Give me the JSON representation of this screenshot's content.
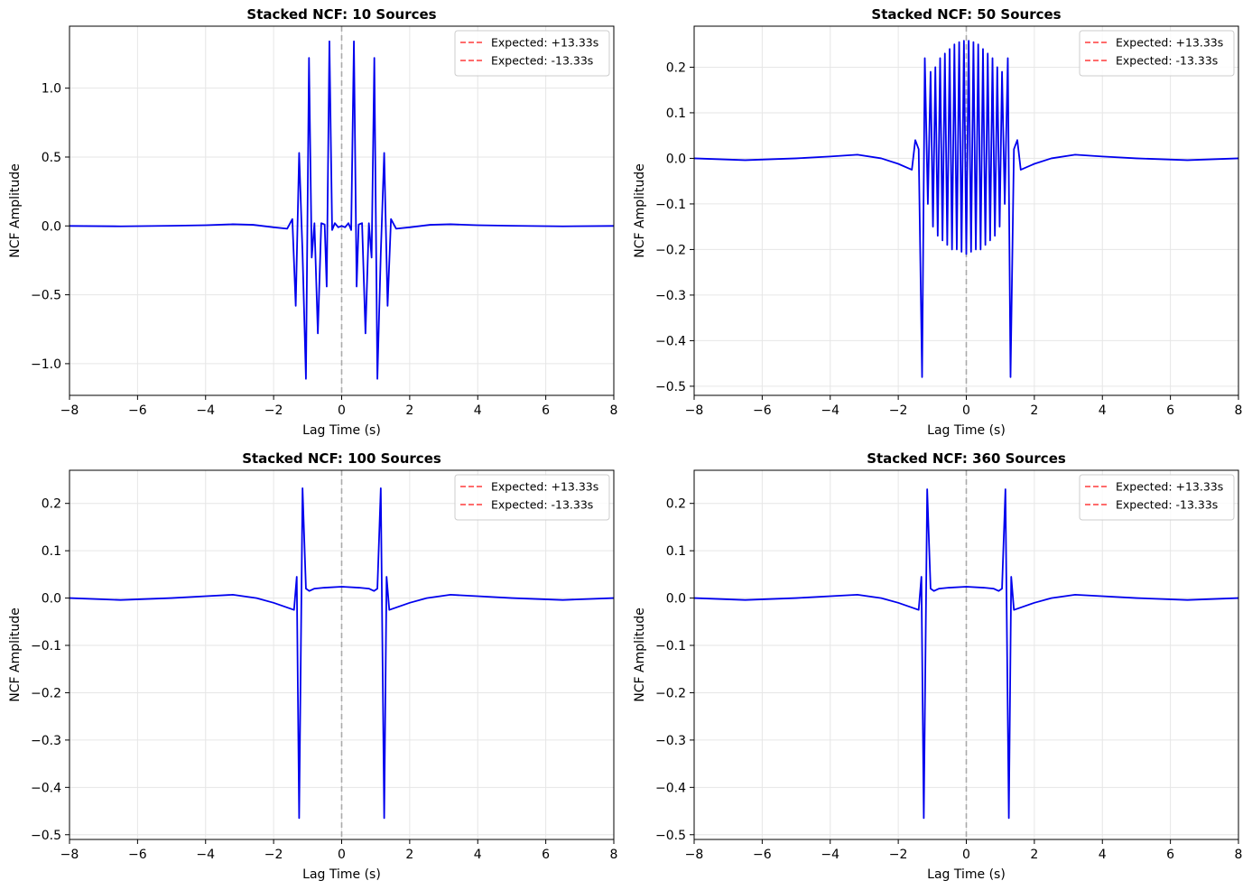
{
  "figure": {
    "background": "#ffffff",
    "line_color": "#0000ee",
    "expected_color": "#ff3b3b",
    "zero_line_color": "#aaaaaa",
    "grid_color": "#e6e6e6"
  },
  "chart_data": [
    {
      "type": "line",
      "title": "Stacked NCF: 10 Sources",
      "xlabel": "Lag Time (s)",
      "ylabel": "NCF Amplitude",
      "xlim": [
        -8,
        8
      ],
      "ylim": [
        -1.23,
        1.45
      ],
      "xticks": [
        -8,
        -6,
        -4,
        -2,
        0,
        2,
        4,
        6,
        8
      ],
      "yticks": [
        -1.0,
        -0.5,
        0.0,
        0.5,
        1.0
      ],
      "ytick_labels": [
        "−1.0",
        "−0.5",
        "0.0",
        "0.5",
        "1.0"
      ],
      "xtick_labels": [
        "−8",
        "−6",
        "−4",
        "−2",
        "0",
        "2",
        "4",
        "6",
        "8"
      ],
      "grid": true,
      "zero_line_x": 0,
      "legend": {
        "position": "top-right",
        "entries": [
          "Expected: +13.33s",
          "Expected: -13.33s"
        ]
      },
      "series": [
        {
          "name": "Stacked NCF",
          "points": [
            [
              -8,
              0
            ],
            [
              -6.5,
              -0.003
            ],
            [
              -5,
              0.001
            ],
            [
              -4,
              0.005
            ],
            [
              -3.2,
              0.012
            ],
            [
              -2.6,
              0.008
            ],
            [
              -2,
              -0.01
            ],
            [
              -1.6,
              -0.02
            ],
            [
              -1.45,
              0.05
            ],
            [
              -1.35,
              -0.58
            ],
            [
              -1.25,
              0.53
            ],
            [
              -1.15,
              -0.2
            ],
            [
              -1.05,
              -1.11
            ],
            [
              -0.96,
              1.22
            ],
            [
              -0.88,
              -0.23
            ],
            [
              -0.8,
              0.02
            ],
            [
              -0.7,
              -0.78
            ],
            [
              -0.6,
              0.02
            ],
            [
              -0.5,
              0.01
            ],
            [
              -0.44,
              -0.44
            ],
            [
              -0.36,
              1.34
            ],
            [
              -0.28,
              -0.03
            ],
            [
              -0.2,
              0.02
            ],
            [
              -0.1,
              -0.01
            ],
            [
              0,
              0
            ],
            [
              0.1,
              -0.01
            ],
            [
              0.2,
              0.02
            ],
            [
              0.28,
              -0.03
            ],
            [
              0.36,
              1.34
            ],
            [
              0.44,
              -0.44
            ],
            [
              0.5,
              0.01
            ],
            [
              0.6,
              0.02
            ],
            [
              0.7,
              -0.78
            ],
            [
              0.8,
              0.02
            ],
            [
              0.88,
              -0.23
            ],
            [
              0.96,
              1.22
            ],
            [
              1.05,
              -1.11
            ],
            [
              1.15,
              -0.2
            ],
            [
              1.25,
              0.53
            ],
            [
              1.35,
              -0.58
            ],
            [
              1.45,
              0.05
            ],
            [
              1.6,
              -0.02
            ],
            [
              2,
              -0.01
            ],
            [
              2.6,
              0.008
            ],
            [
              3.2,
              0.012
            ],
            [
              4,
              0.005
            ],
            [
              5,
              0.001
            ],
            [
              6.5,
              -0.003
            ],
            [
              8,
              0
            ]
          ]
        }
      ]
    },
    {
      "type": "line",
      "title": "Stacked NCF: 50 Sources",
      "xlabel": "Lag Time (s)",
      "ylabel": "NCF Amplitude",
      "xlim": [
        -8,
        8
      ],
      "ylim": [
        -0.52,
        0.29
      ],
      "xticks": [
        -8,
        -6,
        -4,
        -2,
        0,
        2,
        4,
        6,
        8
      ],
      "yticks": [
        -0.5,
        -0.4,
        -0.3,
        -0.2,
        -0.1,
        0.0,
        0.1,
        0.2
      ],
      "ytick_labels": [
        "−0.5",
        "−0.4",
        "−0.3",
        "−0.2",
        "−0.1",
        "0.0",
        "0.1",
        "0.2"
      ],
      "xtick_labels": [
        "−8",
        "−6",
        "−4",
        "−2",
        "0",
        "2",
        "4",
        "6",
        "8"
      ],
      "grid": true,
      "zero_line_x": 0,
      "legend": {
        "position": "top-right",
        "entries": [
          "Expected: +13.33s",
          "Expected: -13.33s"
        ]
      },
      "series": [
        {
          "name": "Stacked NCF",
          "points": [
            [
              -8,
              0
            ],
            [
              -6.5,
              -0.004
            ],
            [
              -5,
              0.0
            ],
            [
              -4,
              0.004
            ],
            [
              -3.2,
              0.008
            ],
            [
              -2.5,
              0.0
            ],
            [
              -2,
              -0.012
            ],
            [
              -1.6,
              -0.025
            ],
            [
              -1.5,
              0.04
            ],
            [
              -1.4,
              0.02
            ],
            [
              -1.3,
              -0.48
            ],
            [
              -1.22,
              0.22
            ],
            [
              -1.13,
              -0.1
            ],
            [
              -1.05,
              0.19
            ],
            [
              -0.98,
              -0.15
            ],
            [
              -0.91,
              0.2
            ],
            [
              -0.84,
              -0.17
            ],
            [
              -0.77,
              0.22
            ],
            [
              -0.7,
              -0.18
            ],
            [
              -0.63,
              0.23
            ],
            [
              -0.56,
              -0.19
            ],
            [
              -0.49,
              0.24
            ],
            [
              -0.42,
              -0.2
            ],
            [
              -0.35,
              0.25
            ],
            [
              -0.28,
              -0.2
            ],
            [
              -0.21,
              0.255
            ],
            [
              -0.14,
              -0.205
            ],
            [
              -0.07,
              0.258
            ],
            [
              0,
              -0.21
            ],
            [
              0.07,
              0.258
            ],
            [
              0.14,
              -0.205
            ],
            [
              0.21,
              0.255
            ],
            [
              0.28,
              -0.2
            ],
            [
              0.35,
              0.25
            ],
            [
              0.42,
              -0.2
            ],
            [
              0.49,
              0.24
            ],
            [
              0.56,
              -0.19
            ],
            [
              0.63,
              0.23
            ],
            [
              0.7,
              -0.18
            ],
            [
              0.77,
              0.22
            ],
            [
              0.84,
              -0.17
            ],
            [
              0.91,
              0.2
            ],
            [
              0.98,
              -0.15
            ],
            [
              1.05,
              0.19
            ],
            [
              1.13,
              -0.1
            ],
            [
              1.22,
              0.22
            ],
            [
              1.3,
              -0.48
            ],
            [
              1.4,
              0.02
            ],
            [
              1.5,
              0.04
            ],
            [
              1.6,
              -0.025
            ],
            [
              2,
              -0.012
            ],
            [
              2.5,
              0.0
            ],
            [
              3.2,
              0.008
            ],
            [
              4,
              0.004
            ],
            [
              5,
              0.0
            ],
            [
              6.5,
              -0.004
            ],
            [
              8,
              0
            ]
          ]
        }
      ]
    },
    {
      "type": "line",
      "title": "Stacked NCF: 100 Sources",
      "xlabel": "Lag Time (s)",
      "ylabel": "NCF Amplitude",
      "xlim": [
        -8,
        8
      ],
      "ylim": [
        -0.51,
        0.27
      ],
      "xticks": [
        -8,
        -6,
        -4,
        -2,
        0,
        2,
        4,
        6,
        8
      ],
      "yticks": [
        -0.5,
        -0.4,
        -0.3,
        -0.2,
        -0.1,
        0.0,
        0.1,
        0.2
      ],
      "ytick_labels": [
        "−0.5",
        "−0.4",
        "−0.3",
        "−0.2",
        "−0.1",
        "0.0",
        "0.1",
        "0.2"
      ],
      "xtick_labels": [
        "−8",
        "−6",
        "−4",
        "−2",
        "0",
        "2",
        "4",
        "6",
        "8"
      ],
      "grid": true,
      "zero_line_x": 0,
      "legend": {
        "position": "top-right",
        "entries": [
          "Expected: +13.33s",
          "Expected: -13.33s"
        ]
      },
      "series": [
        {
          "name": "Stacked NCF",
          "points": [
            [
              -8,
              0
            ],
            [
              -6.5,
              -0.004
            ],
            [
              -5,
              0.0
            ],
            [
              -4,
              0.004
            ],
            [
              -3.2,
              0.007
            ],
            [
              -2.5,
              0.0
            ],
            [
              -2,
              -0.01
            ],
            [
              -1.6,
              -0.02
            ],
            [
              -1.4,
              -0.025
            ],
            [
              -1.32,
              0.045
            ],
            [
              -1.25,
              -0.465
            ],
            [
              -1.15,
              0.232
            ],
            [
              -1.05,
              0.02
            ],
            [
              -0.95,
              0.015
            ],
            [
              -0.8,
              0.02
            ],
            [
              -0.5,
              0.022
            ],
            [
              0,
              0.024
            ],
            [
              0.5,
              0.022
            ],
            [
              0.8,
              0.02
            ],
            [
              0.95,
              0.015
            ],
            [
              1.05,
              0.02
            ],
            [
              1.15,
              0.232
            ],
            [
              1.25,
              -0.465
            ],
            [
              1.32,
              0.045
            ],
            [
              1.4,
              -0.025
            ],
            [
              1.6,
              -0.02
            ],
            [
              2,
              -0.01
            ],
            [
              2.5,
              0.0
            ],
            [
              3.2,
              0.007
            ],
            [
              4,
              0.004
            ],
            [
              5,
              0.0
            ],
            [
              6.5,
              -0.004
            ],
            [
              8,
              0
            ]
          ]
        }
      ]
    },
    {
      "type": "line",
      "title": "Stacked NCF: 360 Sources",
      "xlabel": "Lag Time (s)",
      "ylabel": "NCF Amplitude",
      "xlim": [
        -8,
        8
      ],
      "ylim": [
        -0.51,
        0.27
      ],
      "xticks": [
        -8,
        -6,
        -4,
        -2,
        0,
        2,
        4,
        6,
        8
      ],
      "yticks": [
        -0.5,
        -0.4,
        -0.3,
        -0.2,
        -0.1,
        0.0,
        0.1,
        0.2
      ],
      "ytick_labels": [
        "−0.5",
        "−0.4",
        "−0.3",
        "−0.2",
        "−0.1",
        "0.0",
        "0.1",
        "0.2"
      ],
      "xtick_labels": [
        "−8",
        "−6",
        "−4",
        "−2",
        "0",
        "2",
        "4",
        "6",
        "8"
      ],
      "grid": true,
      "zero_line_x": 0,
      "legend": {
        "position": "top-right",
        "entries": [
          "Expected: +13.33s",
          "Expected: -13.33s"
        ]
      },
      "series": [
        {
          "name": "Stacked NCF",
          "points": [
            [
              -8,
              0
            ],
            [
              -6.5,
              -0.004
            ],
            [
              -5,
              0.0
            ],
            [
              -4,
              0.004
            ],
            [
              -3.2,
              0.007
            ],
            [
              -2.5,
              0.0
            ],
            [
              -2,
              -0.01
            ],
            [
              -1.6,
              -0.02
            ],
            [
              -1.4,
              -0.025
            ],
            [
              -1.32,
              0.045
            ],
            [
              -1.25,
              -0.465
            ],
            [
              -1.15,
              0.23
            ],
            [
              -1.05,
              0.02
            ],
            [
              -0.95,
              0.015
            ],
            [
              -0.8,
              0.02
            ],
            [
              -0.5,
              0.022
            ],
            [
              0,
              0.024
            ],
            [
              0.5,
              0.022
            ],
            [
              0.8,
              0.02
            ],
            [
              0.95,
              0.015
            ],
            [
              1.05,
              0.02
            ],
            [
              1.15,
              0.23
            ],
            [
              1.25,
              -0.465
            ],
            [
              1.32,
              0.045
            ],
            [
              1.4,
              -0.025
            ],
            [
              1.6,
              -0.02
            ],
            [
              2,
              -0.01
            ],
            [
              2.5,
              0.0
            ],
            [
              3.2,
              0.007
            ],
            [
              4,
              0.004
            ],
            [
              5,
              0.0
            ],
            [
              6.5,
              -0.004
            ],
            [
              8,
              0
            ]
          ]
        }
      ]
    }
  ]
}
